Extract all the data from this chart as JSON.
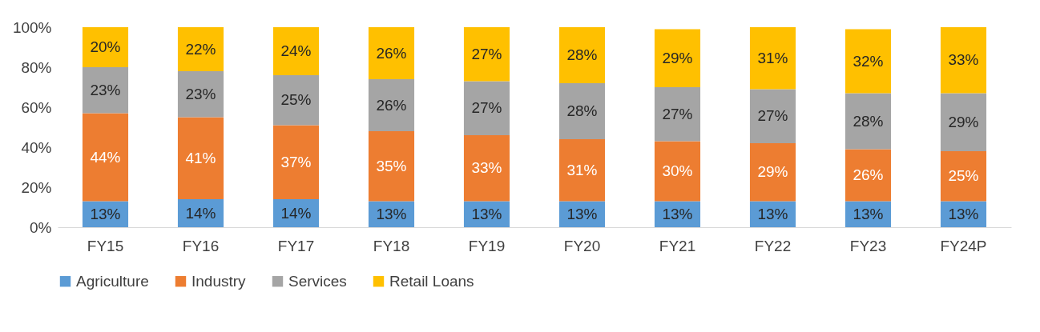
{
  "chart_data": {
    "type": "bar",
    "stacked": true,
    "categories": [
      "FY15",
      "FY16",
      "FY17",
      "FY18",
      "FY19",
      "FY20",
      "FY21",
      "FY22",
      "FY23",
      "FY24P"
    ],
    "series": [
      {
        "name": "Agriculture",
        "color": "#5b9bd5",
        "values": [
          13,
          14,
          14,
          13,
          13,
          13,
          13,
          13,
          13,
          13
        ],
        "value_labels": [
          "13%",
          "14%",
          "14%",
          "13%",
          "13%",
          "13%",
          "13%",
          "13%",
          "13%",
          "13%"
        ]
      },
      {
        "name": "Industry",
        "color": "#ed7d31",
        "values": [
          44,
          41,
          37,
          35,
          33,
          31,
          30,
          29,
          26,
          25
        ],
        "value_labels": [
          "44%",
          "41%",
          "37%",
          "35%",
          "33%",
          "31%",
          "30%",
          "29%",
          "26%",
          "25%"
        ]
      },
      {
        "name": "Services",
        "color": "#a5a5a5",
        "values": [
          23,
          23,
          25,
          26,
          27,
          28,
          27,
          27,
          28,
          29
        ],
        "value_labels": [
          "23%",
          "23%",
          "25%",
          "26%",
          "27%",
          "28%",
          "27%",
          "27%",
          "28%",
          "29%"
        ]
      },
      {
        "name": "Retail Loans",
        "color": "#ffc000",
        "values": [
          20,
          22,
          24,
          26,
          27,
          28,
          29,
          31,
          32,
          33
        ],
        "value_labels": [
          "20%",
          "22%",
          "24%",
          "26%",
          "27%",
          "28%",
          "29%",
          "31%",
          "32%",
          "33%"
        ]
      }
    ],
    "ylim": [
      0,
      100
    ],
    "yticks": [
      {
        "value": 0,
        "label": "0%"
      },
      {
        "value": 20,
        "label": "20%"
      },
      {
        "value": 40,
        "label": "40%"
      },
      {
        "value": 60,
        "label": "60%"
      },
      {
        "value": 80,
        "label": "80%"
      },
      {
        "value": 100,
        "label": "100%"
      }
    ],
    "grid": false,
    "legend": "bottom"
  }
}
